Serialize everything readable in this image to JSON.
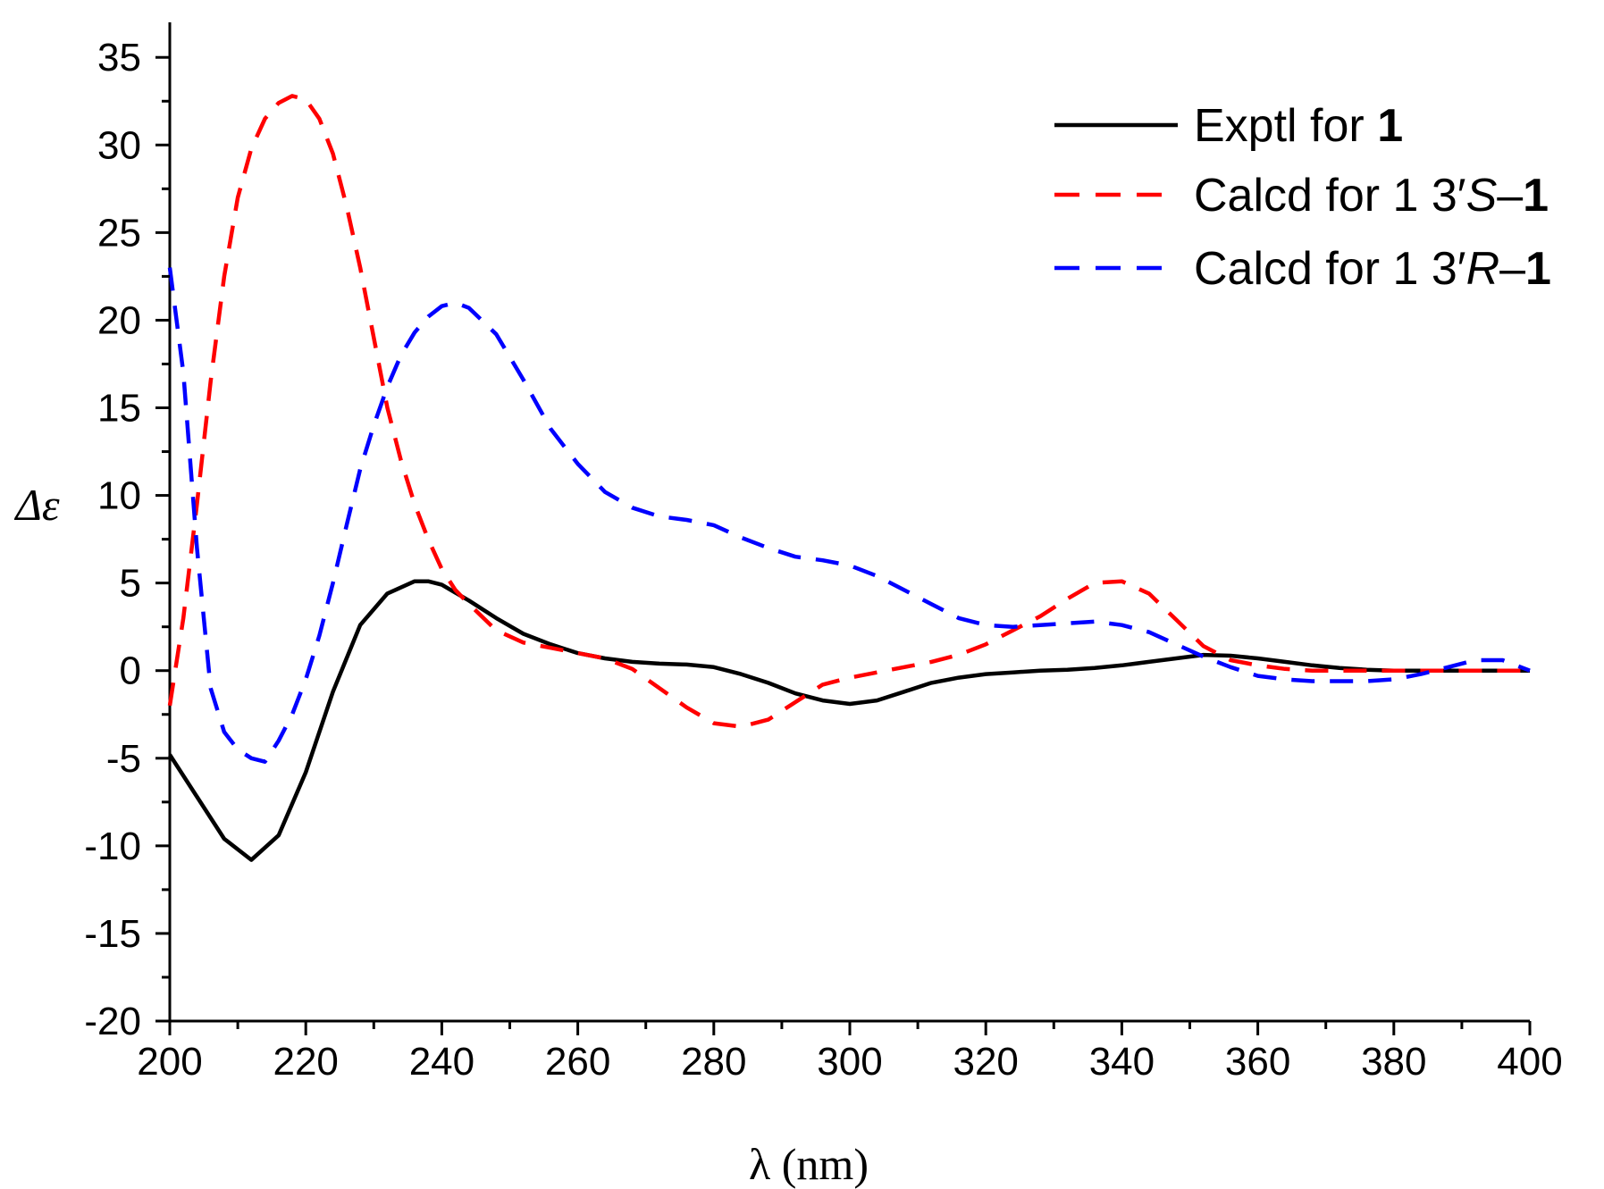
{
  "chart_data": {
    "type": "line",
    "title": "",
    "xlabel": "λ (nm)",
    "ylabel": "Δε",
    "xlim": [
      200,
      400
    ],
    "ylim": [
      -20,
      37
    ],
    "x_ticks": [
      200,
      220,
      240,
      260,
      280,
      300,
      320,
      340,
      360,
      380,
      400
    ],
    "y_ticks": [
      -20,
      -15,
      -10,
      -5,
      0,
      5,
      10,
      15,
      20,
      25,
      30,
      35
    ],
    "x_tick_labels": [
      "200",
      "220",
      "240",
      "260",
      "280",
      "300",
      "320",
      "340",
      "360",
      "380",
      "400"
    ],
    "y_tick_labels": [
      "-20",
      "-15",
      "-10",
      "-5",
      "0",
      "5",
      "10",
      "15",
      "20",
      "25",
      "30",
      "35"
    ],
    "legend_position": "top-right",
    "series": [
      {
        "name": "Exptl for 1",
        "legend_prefix": "Exptl for ",
        "legend_bold": "1",
        "color": "#000000",
        "style": "solid",
        "x": [
          200,
          204,
          208,
          212,
          216,
          220,
          224,
          228,
          232,
          236,
          238,
          240,
          244,
          248,
          252,
          256,
          260,
          264,
          268,
          272,
          276,
          280,
          284,
          288,
          292,
          296,
          300,
          304,
          308,
          312,
          316,
          320,
          324,
          328,
          332,
          336,
          340,
          344,
          348,
          352,
          356,
          360,
          364,
          368,
          372,
          376,
          380,
          384,
          388,
          392,
          396,
          400
        ],
        "y": [
          -4.8,
          -7.2,
          -9.6,
          -10.8,
          -9.4,
          -5.8,
          -1.2,
          2.6,
          4.4,
          5.1,
          5.1,
          4.9,
          4.0,
          3.0,
          2.1,
          1.5,
          1.0,
          0.7,
          0.5,
          0.4,
          0.35,
          0.2,
          -0.2,
          -0.7,
          -1.3,
          -1.7,
          -1.9,
          -1.7,
          -1.2,
          -0.7,
          -0.4,
          -0.2,
          -0.1,
          0.0,
          0.05,
          0.15,
          0.3,
          0.5,
          0.7,
          0.9,
          0.85,
          0.7,
          0.5,
          0.3,
          0.15,
          0.05,
          0.0,
          0.0,
          0.0,
          0.0,
          0.0,
          0.0
        ]
      },
      {
        "name": "Calcd for 1 3′S–1",
        "legend_prefix": "Calcd for 1 3′",
        "legend_italic": "S",
        "legend_suffix": "–",
        "legend_bold": "1",
        "color": "#ff0000",
        "style": "dashed",
        "x": [
          200,
          202,
          204,
          206,
          208,
          210,
          212,
          214,
          216,
          218,
          220,
          222,
          224,
          226,
          228,
          230,
          232,
          234,
          236,
          238,
          240,
          242,
          244,
          248,
          252,
          256,
          260,
          264,
          268,
          272,
          276,
          280,
          284,
          288,
          292,
          296,
          300,
          304,
          308,
          312,
          316,
          320,
          324,
          328,
          332,
          336,
          340,
          344,
          348,
          352,
          356,
          360,
          364,
          368,
          372,
          376,
          380,
          384,
          388,
          392,
          396,
          400
        ],
        "y": [
          -2.0,
          3.0,
          9.5,
          16.5,
          22.5,
          27.0,
          29.8,
          31.5,
          32.4,
          32.8,
          32.6,
          31.5,
          29.5,
          26.5,
          23.0,
          19.0,
          15.0,
          12.0,
          9.5,
          7.5,
          5.8,
          4.6,
          3.8,
          2.3,
          1.6,
          1.3,
          1.0,
          0.7,
          0.1,
          -1.0,
          -2.1,
          -3.0,
          -3.2,
          -2.8,
          -1.8,
          -0.8,
          -0.4,
          -0.1,
          0.2,
          0.5,
          0.9,
          1.5,
          2.3,
          3.1,
          4.1,
          5.0,
          5.1,
          4.4,
          2.9,
          1.4,
          0.6,
          0.3,
          0.1,
          0.0,
          0.0,
          0.0,
          0.0,
          0.0,
          0.0,
          0.0,
          0.0,
          0.0
        ]
      },
      {
        "name": "Calcd for 1 3′R–1",
        "legend_prefix": "Calcd for 1 3′",
        "legend_italic": "R",
        "legend_suffix": "–",
        "legend_bold": "1",
        "color": "#0000ff",
        "style": "dashed",
        "x": [
          200,
          202,
          204,
          206,
          208,
          210,
          212,
          214,
          216,
          218,
          220,
          222,
          224,
          226,
          228,
          230,
          232,
          234,
          236,
          238,
          240,
          242,
          244,
          248,
          252,
          256,
          260,
          264,
          268,
          272,
          276,
          280,
          284,
          288,
          292,
          296,
          300,
          304,
          308,
          312,
          316,
          320,
          324,
          328,
          332,
          336,
          340,
          344,
          348,
          352,
          356,
          360,
          364,
          368,
          372,
          376,
          380,
          384,
          388,
          392,
          396,
          400
        ],
        "y": [
          23.0,
          17.0,
          7.0,
          -1.0,
          -3.5,
          -4.5,
          -5.0,
          -5.2,
          -4.0,
          -2.5,
          -0.5,
          2.0,
          5.0,
          8.3,
          11.5,
          14.0,
          16.2,
          18.0,
          19.3,
          20.2,
          20.8,
          21.0,
          20.7,
          19.2,
          16.6,
          13.8,
          11.8,
          10.2,
          9.3,
          8.8,
          8.6,
          8.3,
          7.6,
          7.0,
          6.5,
          6.3,
          6.0,
          5.4,
          4.6,
          3.8,
          3.0,
          2.6,
          2.5,
          2.6,
          2.7,
          2.8,
          2.6,
          2.2,
          1.5,
          0.8,
          0.2,
          -0.3,
          -0.5,
          -0.6,
          -0.6,
          -0.6,
          -0.5,
          -0.2,
          0.2,
          0.6,
          0.6,
          0.0
        ]
      }
    ]
  }
}
